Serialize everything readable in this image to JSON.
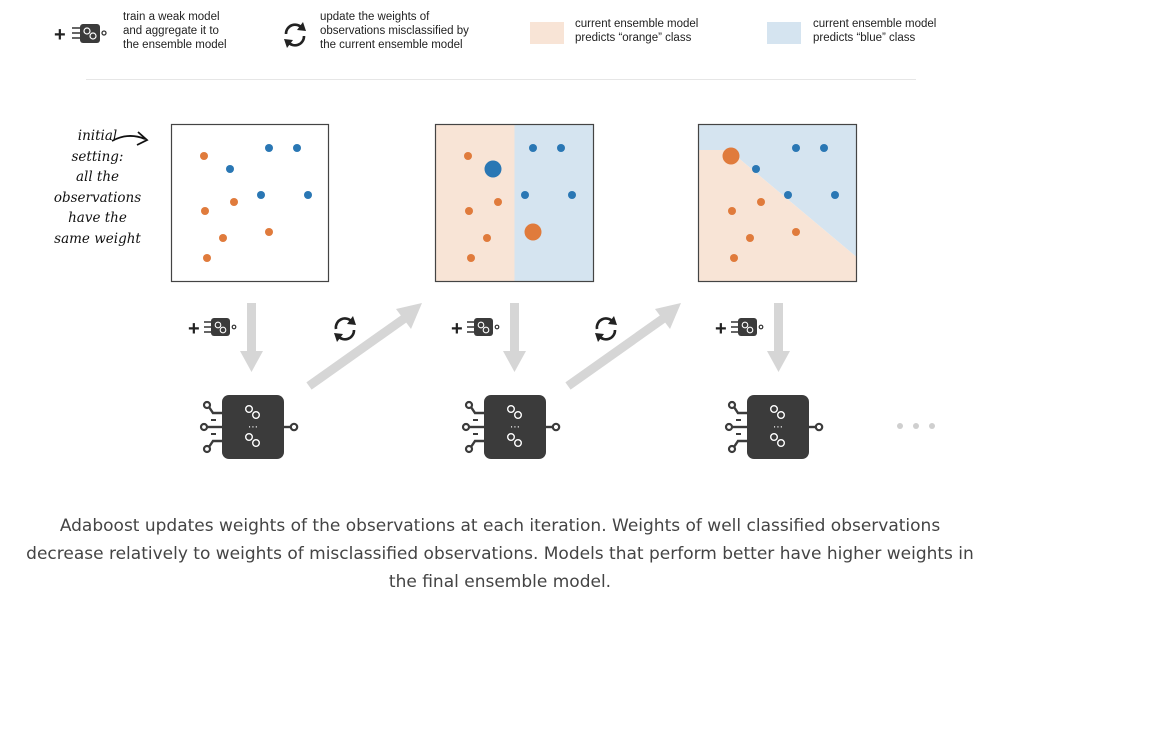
{
  "legend": {
    "weak_model_text": "train a weak model\nand aggregate it to\nthe ensemble model",
    "update_text": "update the weights of\nobservations misclassified by\nthe current ensemble model",
    "orange_text": "current ensemble model\npredicts “orange” class",
    "blue_text": "current ensemble model\npredicts “blue” class",
    "orange_color": "#f8e4d6",
    "blue_color": "#d5e4f0"
  },
  "annotation": {
    "initial_setting": "initial\nsetting:\nall the\nobservations\nhave the\nsame weight"
  },
  "colors": {
    "orange_point": "#e07b3c",
    "blue_point": "#2a77b4",
    "arrow": "#d6d6d6",
    "model_box": "#3b3b3b"
  },
  "caption": {
    "line1": "Adaboost updates weights of the observations at each iteration. Weights of well classified observations",
    "line2": "decrease relatively to weights of misclassified observations. Models that perform better have higher weights in",
    "line3": "the final ensemble model."
  }
}
